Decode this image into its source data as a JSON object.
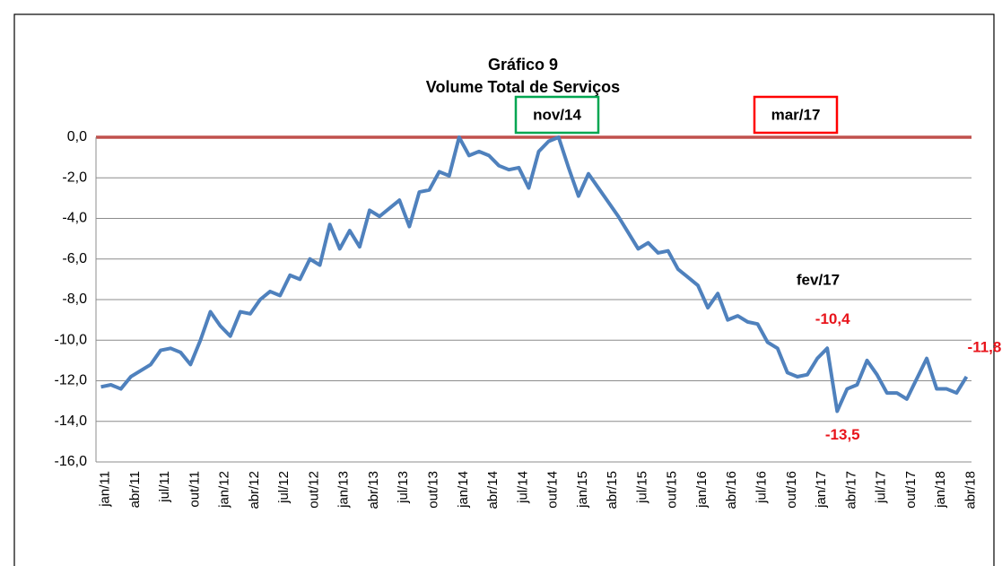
{
  "chart_data": {
    "type": "line",
    "title": "Gráfico 9",
    "subtitle": "Volume Total de Serviços",
    "categories": [
      "jan/11",
      null,
      null,
      "abr/11",
      null,
      null,
      "jul/11",
      null,
      null,
      "out/11",
      null,
      null,
      "jan/12",
      null,
      null,
      "abr/12",
      null,
      null,
      "jul/12",
      null,
      null,
      "out/12",
      null,
      null,
      "jan/13",
      null,
      null,
      "abr/13",
      null,
      null,
      "jul/13",
      null,
      null,
      "out/13",
      null,
      null,
      "jan/14",
      null,
      null,
      "abr/14",
      null,
      null,
      "jul/14",
      null,
      null,
      "out/14",
      null,
      null,
      "jan/15",
      null,
      null,
      "abr/15",
      null,
      null,
      "jul/15",
      null,
      null,
      "out/15",
      null,
      null,
      "jan/16",
      null,
      null,
      "abr/16",
      null,
      null,
      "jul/16",
      null,
      null,
      "out/16",
      null,
      null,
      "jan/17",
      null,
      null,
      "abr/17",
      null,
      null,
      "jul/17",
      null,
      null,
      "out/17",
      null,
      null,
      "jan/18",
      null,
      null,
      "abr/18"
    ],
    "series": [
      {
        "color": "#4f81bd",
        "values": [
          -12.3,
          -12.2,
          -12.4,
          -11.8,
          -11.5,
          -11.2,
          -10.5,
          -10.4,
          -10.6,
          -11.2,
          -10.0,
          -8.6,
          -9.3,
          -9.8,
          -8.6,
          -8.7,
          -8.0,
          -7.6,
          -7.8,
          -6.8,
          -7.0,
          -6.0,
          -6.3,
          -4.3,
          -5.5,
          -4.6,
          -5.4,
          -3.6,
          -3.9,
          -3.5,
          -3.1,
          -4.4,
          -2.7,
          -2.6,
          -1.7,
          -1.9,
          0.0,
          -0.9,
          -0.7,
          -0.9,
          -1.4,
          -1.6,
          -1.5,
          -2.5,
          -0.7,
          -0.2,
          0.0,
          -1.5,
          -2.9,
          -1.8,
          -2.5,
          -3.2,
          -3.9,
          -4.7,
          -5.5,
          -5.2,
          -5.7,
          -5.6,
          -6.5,
          -6.9,
          -7.3,
          -8.4,
          -7.7,
          -9.0,
          -8.8,
          -9.1,
          -9.2,
          -10.1,
          -10.4,
          -11.6,
          -11.8,
          -11.7,
          -10.9,
          -10.4,
          -13.5,
          -12.4,
          -12.2,
          -11.0,
          -11.7,
          -12.6,
          -12.6,
          -12.9,
          -11.9,
          -10.9,
          -12.4,
          -12.4,
          -12.6,
          -11.8
        ],
        "value_labels": [
          null,
          null,
          null,
          null,
          null,
          null,
          null,
          null,
          null,
          null,
          null,
          null,
          null,
          null,
          null,
          null,
          null,
          null,
          null,
          null,
          null,
          null,
          null,
          null,
          null,
          null,
          null,
          null,
          null,
          null,
          null,
          null,
          null,
          null,
          null,
          null,
          null,
          null,
          null,
          null,
          null,
          null,
          null,
          null,
          null,
          null,
          null,
          null,
          null,
          null,
          null,
          null,
          null,
          null,
          null,
          null,
          null,
          null,
          null,
          null,
          null,
          null,
          null,
          null,
          null,
          null,
          null,
          null,
          null,
          null,
          null,
          null,
          null,
          "-10,4",
          "-13,5",
          null,
          null,
          null,
          null,
          null,
          null,
          null,
          null,
          null,
          null,
          null,
          null,
          "-11,8"
        ]
      }
    ],
    "ylim": [
      -16,
      0
    ],
    "yticks": [
      {
        "value": 0,
        "label": "0,0"
      },
      {
        "value": -2,
        "label": "-2,0"
      },
      {
        "value": -4,
        "label": "-4,0"
      },
      {
        "value": -6,
        "label": "-6,0"
      },
      {
        "value": -8,
        "label": "-8,0"
      },
      {
        "value": -10,
        "label": "-10,0"
      },
      {
        "value": -12,
        "label": "-12,0"
      },
      {
        "value": -14,
        "label": "-14,0"
      },
      {
        "value": -16,
        "label": "-16,0"
      }
    ],
    "grid": true,
    "zero_line_color": "#c0504d",
    "annotations": [
      {
        "text": "nov/14",
        "color": "#00a651"
      },
      {
        "text": "mar/17",
        "color": "#ff0000"
      },
      {
        "text": "fev/17"
      }
    ]
  }
}
